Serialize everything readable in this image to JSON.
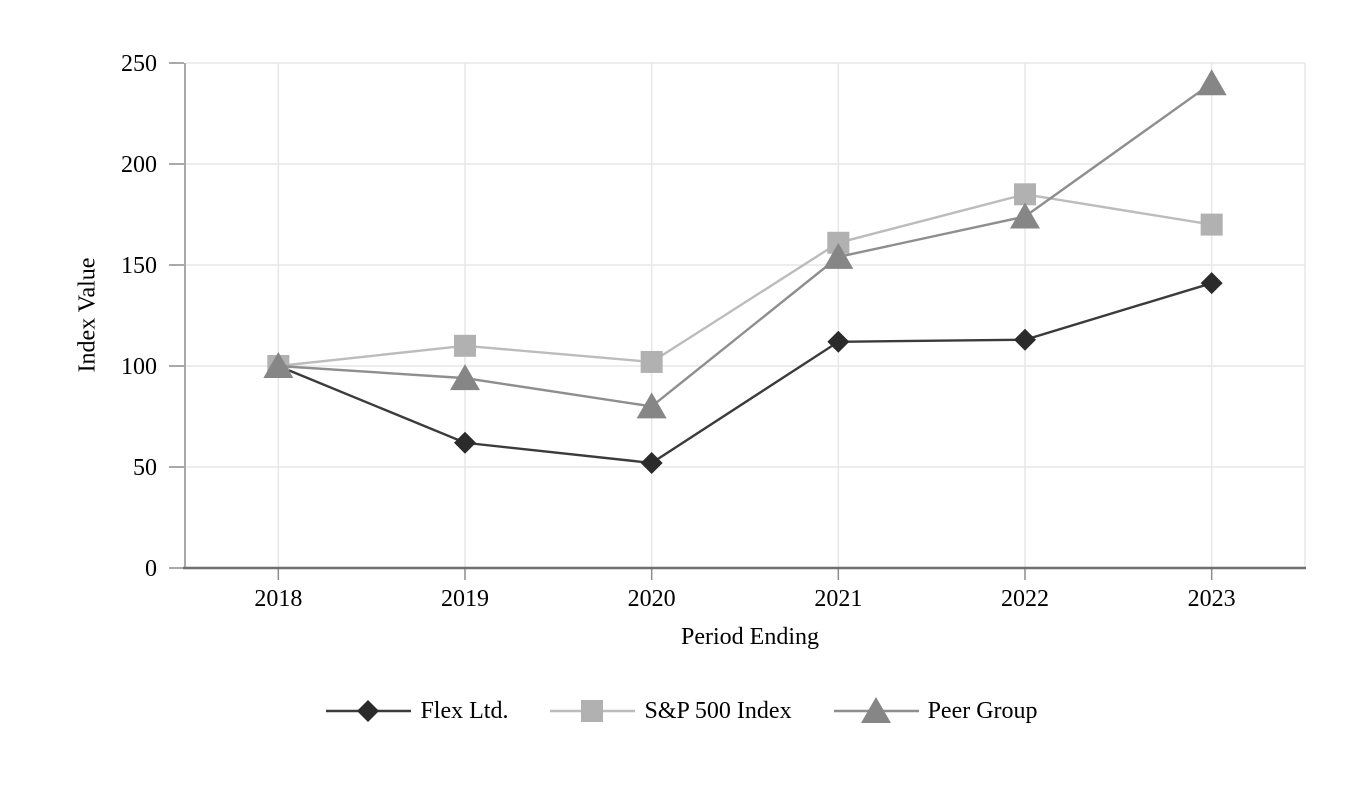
{
  "chart_data": {
    "type": "line",
    "title": "",
    "categories": [
      "2018",
      "2019",
      "2020",
      "2021",
      "2022",
      "2023"
    ],
    "series": [
      {
        "name": "Flex Ltd.",
        "marker": "diamond",
        "line_color": "#3b3b3b",
        "marker_color": "#2b2b2b",
        "values": [
          100,
          62,
          52,
          112,
          113,
          141
        ]
      },
      {
        "name": "S&P 500 Index",
        "marker": "square",
        "line_color": "#bcbcbc",
        "marker_color": "#b1b1b1",
        "values": [
          100,
          110,
          102,
          161,
          185,
          170
        ]
      },
      {
        "name": "Peer Group",
        "marker": "triangle",
        "line_color": "#8e8e8e",
        "marker_color": "#868686",
        "values": [
          100,
          94,
          80,
          154,
          174,
          240
        ]
      }
    ],
    "xlabel": "Period Ending",
    "ylabel": "Index Value",
    "ylim": [
      0,
      250
    ],
    "yticks": [
      0,
      50,
      100,
      150,
      200,
      250
    ],
    "grid": true,
    "legend_position": "bottom",
    "colors": {
      "grid": "#e7e7e7",
      "y_axis": "#8c8c8c",
      "x_axis": "#6f6f6f",
      "tick": "#8c8c8c",
      "text": "#000000",
      "background": "#ffffff"
    }
  }
}
